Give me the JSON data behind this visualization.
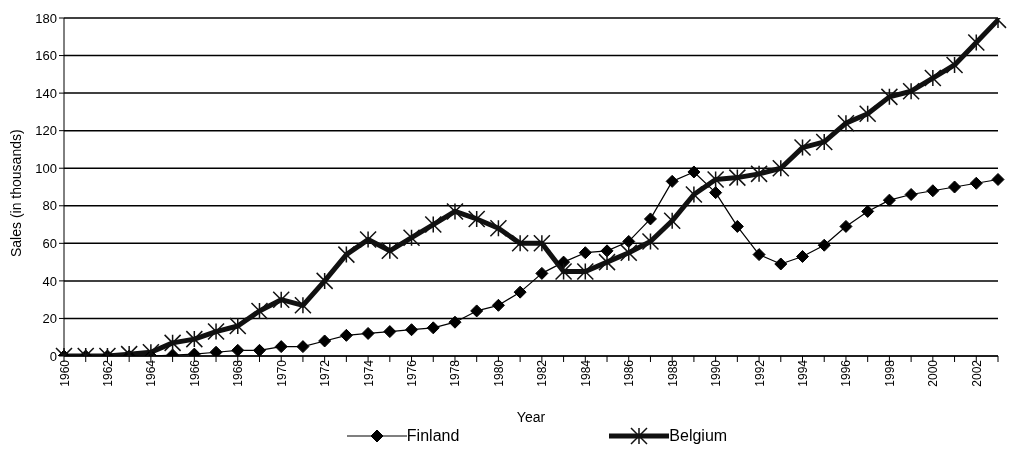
{
  "chart_data": {
    "type": "line",
    "xlabel": "Year",
    "ylabel": "Sales (in thousands)",
    "categories": [
      "1960",
      null,
      "1962",
      null,
      "1964",
      null,
      "1966",
      null,
      "1968",
      null,
      "1970",
      null,
      "1972",
      null,
      "1974",
      null,
      "1976",
      null,
      "1978",
      null,
      "1980",
      null,
      "1982",
      null,
      "1984",
      null,
      "1986",
      null,
      "1988",
      null,
      "1990",
      null,
      "1992",
      null,
      "1994",
      null,
      "1996",
      null,
      "1998",
      null,
      "2000",
      null,
      "2002",
      null
    ],
    "series": [
      {
        "name": "Finland",
        "color": "#000000",
        "marker": "diamond",
        "values": [
          0,
          0,
          0,
          0,
          0,
          0.5,
          1,
          2,
          3,
          3,
          5,
          5,
          8,
          11,
          12,
          13,
          14,
          15,
          18,
          24,
          27,
          34,
          44,
          50,
          55,
          56,
          61,
          73,
          93,
          98,
          87,
          69,
          54,
          49,
          53,
          59,
          69,
          77,
          83,
          86,
          88,
          90,
          92,
          94
        ]
      },
      {
        "name": "Belgium",
        "color": "#111111",
        "marker": "cross",
        "values": [
          0,
          0,
          0,
          1,
          2,
          7,
          9,
          13,
          16,
          24,
          30,
          27,
          40,
          54,
          62,
          56,
          63,
          70,
          77,
          73,
          68,
          60,
          60,
          45,
          45,
          50,
          55,
          61,
          72,
          86,
          94,
          95,
          97,
          100,
          111,
          114,
          124,
          129,
          138,
          141,
          148,
          155,
          167,
          179
        ]
      }
    ],
    "ylim": [
      0,
      180
    ],
    "yticks": [
      0,
      20,
      40,
      60,
      80,
      100,
      120,
      140,
      160,
      180
    ],
    "grid": "y",
    "legend": "bottom"
  }
}
